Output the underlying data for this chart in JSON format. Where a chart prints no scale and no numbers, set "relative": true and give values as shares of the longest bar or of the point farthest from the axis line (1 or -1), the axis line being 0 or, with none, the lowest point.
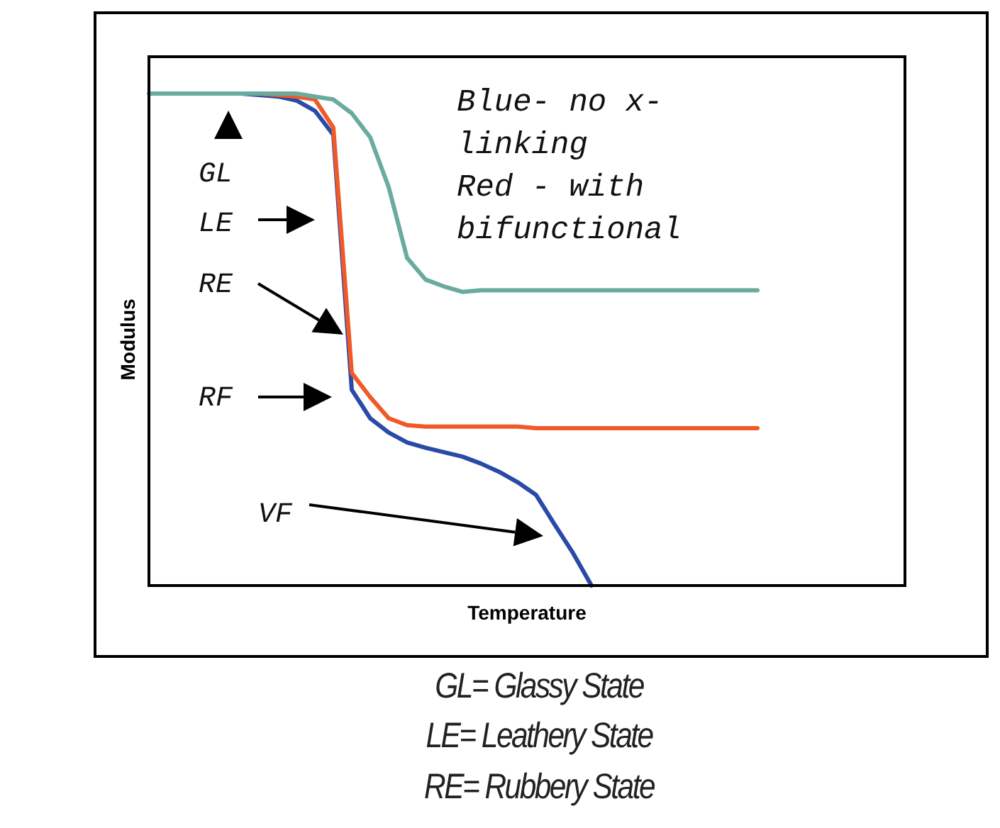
{
  "chart_data": {
    "type": "line",
    "relative": true,
    "tick_labels": false,
    "xlabel": "Temperature",
    "ylabel": "Modulus",
    "categories": [
      null,
      null,
      null,
      null,
      null,
      null,
      null,
      null,
      null,
      null,
      null,
      null,
      null,
      null,
      null,
      null,
      null,
      null,
      null,
      null,
      null,
      null,
      null,
      null,
      null,
      null,
      null,
      null,
      null,
      null,
      null,
      null,
      null,
      null,
      null,
      null,
      null,
      null,
      null,
      null,
      null,
      null
    ],
    "series": [
      {
        "color": "#6aaba0",
        "values": [
          1,
          1,
          1,
          1,
          1,
          1,
          1,
          1,
          1,
          0.994,
          0.988,
          0.96,
          0.911,
          0.81,
          0.666,
          0.622,
          0.608,
          0.597,
          0.6,
          0.6,
          0.6,
          0.6,
          0.6,
          0.6,
          0.6,
          0.6,
          0.6,
          0.6,
          0.6,
          0.6,
          0.6,
          0.6,
          0.6,
          0.6,
          null,
          null,
          null,
          null,
          null,
          null,
          null,
          null
        ]
      },
      {
        "color": "#f05a28",
        "values": [
          null,
          null,
          null,
          null,
          null,
          null,
          1,
          0.997,
          0.994,
          0.988,
          0.931,
          0.432,
          0.383,
          0.34,
          0.326,
          0.323,
          0.323,
          0.323,
          0.323,
          0.323,
          0.323,
          0.32,
          0.32,
          0.32,
          0.32,
          0.32,
          0.32,
          0.32,
          0.32,
          0.32,
          0.32,
          0.32,
          0.32,
          0.32,
          null,
          null,
          null,
          null,
          null,
          null,
          null,
          null
        ]
      },
      {
        "color": "#2a4aa8",
        "values": [
          null,
          null,
          null,
          null,
          1,
          1,
          0.997,
          0.994,
          0.986,
          0.965,
          0.916,
          0.398,
          0.34,
          0.311,
          0.291,
          0.28,
          0.271,
          0.262,
          0.248,
          0.231,
          0.21,
          0.184,
          0.124,
          0.066,
          0,
          null,
          null,
          null,
          null,
          null,
          null,
          null,
          null,
          null,
          null,
          null,
          null,
          null,
          null,
          null,
          null,
          null
        ]
      }
    ],
    "annotations": [
      "GL",
      "LE",
      "RE",
      "RF",
      "VF",
      "Blue- no x-\nlinking\nRed - with\nbifunctional",
      "GL= Glassy State",
      "LE= Leathery State",
      "RE= Rubbery State"
    ]
  }
}
